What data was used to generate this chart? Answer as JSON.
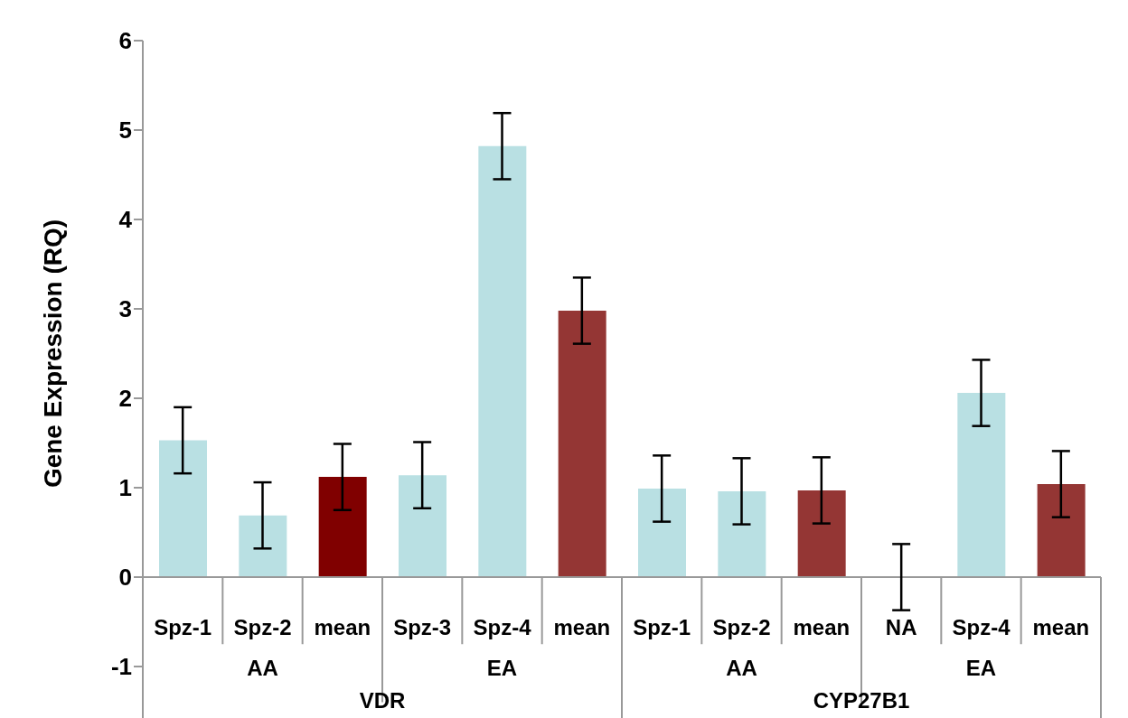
{
  "chart_data": {
    "type": "bar",
    "ylabel": "Gene Expression (RQ)",
    "categories": [
      "Spz-1",
      "Spz-2",
      "mean",
      "Spz-3",
      "Spz-4",
      "mean",
      "Spz-1",
      "Spz-2",
      "mean",
      "NA",
      "Spz-4",
      "mean"
    ],
    "values": [
      1.53,
      0.69,
      1.12,
      1.14,
      4.82,
      2.98,
      0.99,
      0.96,
      0.97,
      0,
      2.06,
      1.04
    ],
    "colors": [
      "#b9e0e3",
      "#b9e0e3",
      "#800000",
      "#b9e0e3",
      "#b9e0e3",
      "#943634",
      "#b9e0e3",
      "#b9e0e3",
      "#943634",
      "#b9e0e3",
      "#b9e0e3",
      "#943634"
    ],
    "errors": [
      0.37,
      0.37,
      0.37,
      0.37,
      0.37,
      0.37,
      0.37,
      0.37,
      0.37,
      0.37,
      0.37,
      0.37
    ],
    "ylim": [
      -1,
      6
    ],
    "yticks": [
      -1,
      0,
      1,
      2,
      3,
      4,
      5,
      6
    ],
    "grid": false,
    "legend": false,
    "annotations": [
      "AA",
      "EA",
      "AA",
      "EA",
      "VDR",
      "CYP27B1"
    ]
  }
}
